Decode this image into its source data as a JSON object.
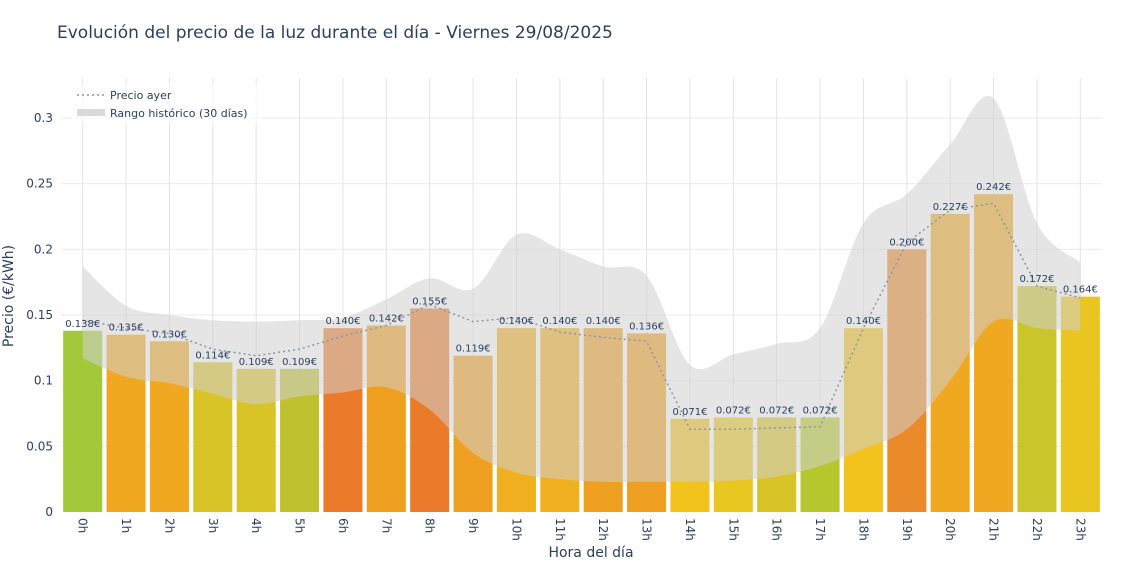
{
  "chart_data": {
    "type": "bar",
    "title": "Evolución del precio de la luz durante el día - Viernes 29/08/2025",
    "xlabel": "Hora del día",
    "ylabel": "Precio (€/kWh)",
    "ylim": [
      0,
      0.33
    ],
    "yticks": [
      0,
      0.05,
      0.1,
      0.15,
      0.2,
      0.25,
      0.3
    ],
    "ytick_labels": [
      "0",
      "0.05",
      "0.1",
      "0.15",
      "0.2",
      "0.25",
      "0.3"
    ],
    "grid": true,
    "legend_position": "top-left",
    "categories": [
      "0h",
      "1h",
      "2h",
      "3h",
      "4h",
      "5h",
      "6h",
      "7h",
      "8h",
      "9h",
      "10h",
      "11h",
      "12h",
      "13h",
      "14h",
      "15h",
      "16h",
      "17h",
      "18h",
      "19h",
      "20h",
      "21h",
      "22h",
      "23h"
    ],
    "values": [
      0.138,
      0.135,
      0.13,
      0.114,
      0.109,
      0.109,
      0.14,
      0.142,
      0.155,
      0.119,
      0.14,
      0.14,
      0.14,
      0.136,
      0.071,
      0.072,
      0.072,
      0.072,
      0.14,
      0.2,
      0.227,
      0.242,
      0.172,
      0.164
    ],
    "value_labels": [
      "0.138€",
      "0.135€",
      "0.130€",
      "0.114€",
      "0.109€",
      "0.109€",
      "0.140€",
      "0.142€",
      "0.155€",
      "0.119€",
      "0.140€",
      "0.140€",
      "0.140€",
      "0.136€",
      "0.071€",
      "0.072€",
      "0.072€",
      "0.072€",
      "0.140€",
      "0.200€",
      "0.227€",
      "0.242€",
      "0.172€",
      "0.164€"
    ],
    "bar_colors": [
      "#a3c93a",
      "#f0a820",
      "#f0a820",
      "#d9c427",
      "#d9c427",
      "#bfc22e",
      "#eb7a2a",
      "#f0a020",
      "#eb7a2a",
      "#f0a020",
      "#f0b020",
      "#f0b020",
      "#f0a020",
      "#f0a020",
      "#f2c21d",
      "#e9c720",
      "#d9c427",
      "#b6c72e",
      "#f2c21d",
      "#eb8a2a",
      "#f0a820",
      "#f0a820",
      "#c9c52a",
      "#e9c520"
    ],
    "series": [
      {
        "name": "Precio ayer",
        "style": "dotted-line",
        "color": "#8c96a3",
        "values": [
          0.146,
          0.14,
          0.136,
          0.124,
          0.119,
          0.124,
          0.134,
          0.142,
          0.158,
          0.145,
          0.148,
          0.137,
          0.133,
          0.13,
          0.063,
          0.063,
          0.064,
          0.065,
          0.14,
          0.205,
          0.23,
          0.235,
          0.172,
          0.163
        ]
      },
      {
        "name": "Rango histórico (30 días)",
        "style": "band",
        "color": "#d9d9d9",
        "lower": [
          0.117,
          0.103,
          0.098,
          0.09,
          0.082,
          0.088,
          0.091,
          0.095,
          0.078,
          0.045,
          0.03,
          0.025,
          0.023,
          0.023,
          0.023,
          0.024,
          0.027,
          0.035,
          0.048,
          0.063,
          0.1,
          0.145,
          0.14,
          0.138
        ],
        "upper": [
          0.187,
          0.157,
          0.15,
          0.146,
          0.145,
          0.146,
          0.148,
          0.162,
          0.178,
          0.17,
          0.211,
          0.2,
          0.187,
          0.18,
          0.112,
          0.12,
          0.128,
          0.14,
          0.22,
          0.242,
          0.28,
          0.315,
          0.22,
          0.19
        ]
      }
    ]
  }
}
